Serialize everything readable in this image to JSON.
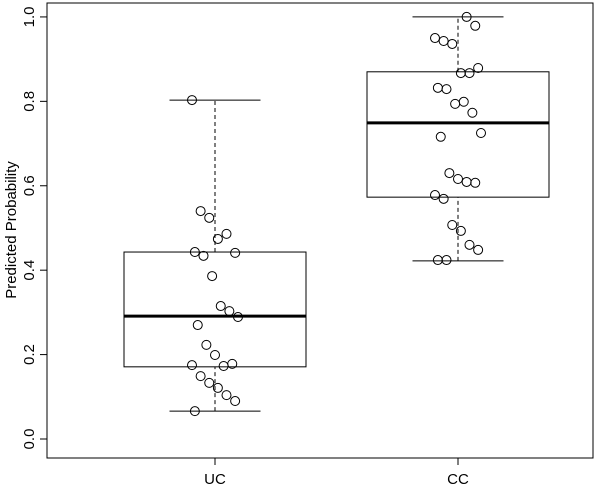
{
  "chart_data": {
    "type": "box",
    "ylabel": "Predicted Probability",
    "categories": [
      "UC",
      "CC"
    ],
    "boxes": [
      {
        "whislo": 0.066,
        "q1": 0.171,
        "med": 0.291,
        "q3": 0.443,
        "whishi": 0.803,
        "points": [
          0.803,
          0.54,
          0.524,
          0.474,
          0.486,
          0.441,
          0.443,
          0.434,
          0.386,
          0.315,
          0.303,
          0.289,
          0.27,
          0.223,
          0.199,
          0.173,
          0.178,
          0.175,
          0.149,
          0.133,
          0.121,
          0.104,
          0.09,
          0.066
        ]
      },
      {
        "whislo": 0.422,
        "q1": 0.573,
        "med": 0.749,
        "q3": 0.87,
        "whishi": 1.0,
        "points": [
          1.0,
          0.979,
          0.95,
          0.943,
          0.936,
          0.867,
          0.867,
          0.879,
          0.832,
          0.829,
          0.794,
          0.799,
          0.773,
          0.725,
          0.716,
          0.63,
          0.616,
          0.609,
          0.607,
          0.578,
          0.569,
          0.507,
          0.493,
          0.46,
          0.448,
          0.424,
          0.424
        ]
      }
    ],
    "ylim": [
      -0.045,
      1.033
    ],
    "yticks": [
      {
        "value": 0,
        "label": "0.0"
      },
      0.2,
      0.4,
      0.6,
      0.8,
      {
        "value": 1,
        "label": "1.0"
      }
    ],
    "color": "#000000"
  }
}
